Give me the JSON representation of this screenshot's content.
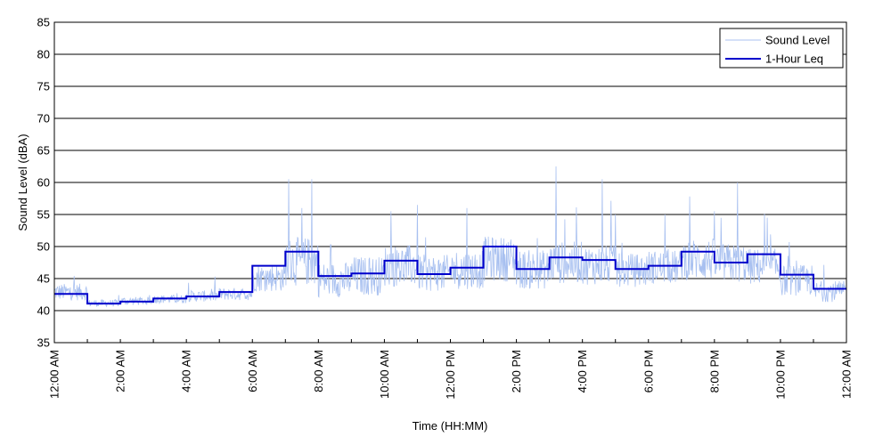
{
  "chart_data": {
    "type": "line",
    "xlabel": "Time (HH:MM)",
    "ylabel": "Sound Level (dBA)",
    "ylim": [
      35,
      85
    ],
    "yticks": [
      35,
      40,
      45,
      50,
      55,
      60,
      65,
      70,
      75,
      80,
      85
    ],
    "xlim_hours": [
      0,
      24
    ],
    "xtick_hours": [
      0,
      2,
      4,
      6,
      8,
      10,
      12,
      14,
      16,
      18,
      20,
      22,
      24
    ],
    "xtick_labels": [
      "12:00 AM",
      "2:00 AM",
      "4:00 AM",
      "6:00 AM",
      "8:00 AM",
      "10:00 AM",
      "12:00 PM",
      "2:00 PM",
      "4:00 PM",
      "6:00 PM",
      "8:00 PM",
      "10:00 PM",
      "12:00 AM"
    ],
    "grid": "horizontal",
    "legend_position": "top-right",
    "series": [
      {
        "name": "Sound Level",
        "color": "#a8c0f0",
        "base": [
          42.5,
          41.0,
          41.3,
          41.6,
          42.0,
          42.3,
          44.5,
          46.5,
          44.0,
          44.5,
          46.0,
          45.0,
          45.5,
          47.0,
          45.5,
          46.5,
          46.2,
          45.5,
          46.0,
          47.0,
          46.5,
          46.0,
          44.0,
          42.5
        ],
        "spread": [
          1.2,
          0.5,
          0.6,
          0.6,
          0.8,
          0.9,
          2.0,
          3.5,
          2.5,
          2.8,
          3.0,
          2.6,
          2.8,
          3.2,
          2.8,
          3.0,
          2.8,
          2.4,
          2.4,
          3.0,
          2.8,
          2.6,
          2.2,
          1.5
        ],
        "peaks": [
          [
            7.1,
            60.5
          ],
          [
            7.5,
            56.0
          ],
          [
            7.8,
            60.5
          ],
          [
            11.0,
            56.5
          ],
          [
            15.2,
            62.5
          ],
          [
            16.6,
            60.5
          ],
          [
            17.0,
            55.0
          ],
          [
            20.7,
            60.0
          ],
          [
            21.6,
            54.5
          ],
          [
            10.2,
            55.5
          ],
          [
            12.5,
            56.0
          ],
          [
            18.5,
            55.0
          ]
        ]
      },
      {
        "name": "1-Hour Leq",
        "color": "#0000cc",
        "values": [
          42.6,
          41.1,
          41.4,
          41.9,
          42.2,
          42.9,
          47.0,
          49.2,
          45.4,
          45.8,
          47.8,
          45.7,
          46.7,
          50.0,
          46.5,
          48.3,
          47.9,
          46.5,
          47.0,
          49.2,
          47.5,
          48.8,
          45.6,
          43.4
        ]
      }
    ]
  }
}
